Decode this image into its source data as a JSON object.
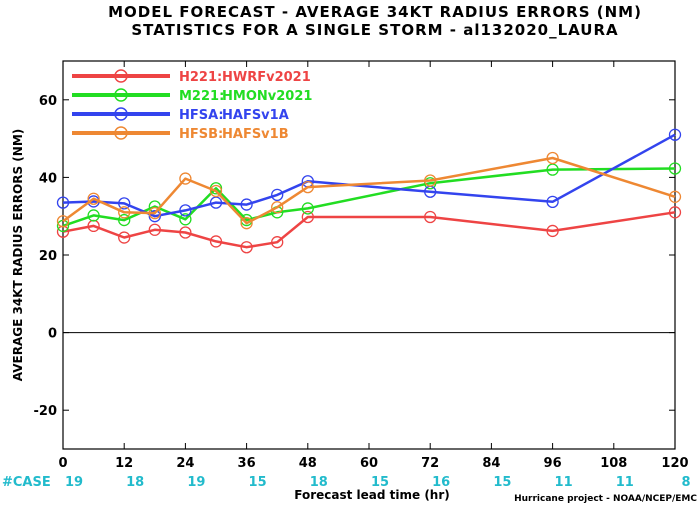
{
  "chart_data": {
    "type": "line",
    "title": "MODEL FORECAST - AVERAGE 34KT RADIUS ERRORS (NM)",
    "subtitle": "STATISTICS FOR A SINGLE STORM - al132020_LAURA",
    "xlabel": "Forecast lead time (hr)",
    "ylabel": "AVERAGE 34KT RADIUS ERRORS (NM)",
    "xlim": [
      0,
      120
    ],
    "ylim": [
      -30,
      70
    ],
    "x_ticks": [
      0,
      12,
      24,
      36,
      48,
      60,
      72,
      84,
      96,
      108,
      120
    ],
    "y_ticks": [
      -20,
      0,
      20,
      40,
      60
    ],
    "grid": false,
    "legend_position": "top-left",
    "case_label": "#CASE",
    "case_x": [
      0,
      12,
      24,
      36,
      48,
      60,
      72,
      84,
      96,
      108,
      120
    ],
    "case_counts": [
      "19",
      "18",
      "19",
      "15",
      "18",
      "15",
      "16",
      "15",
      "11",
      "11",
      "8"
    ],
    "credit": "Hurricane project - NOAA/NCEP/EMC",
    "series": [
      {
        "name": "H221:",
        "desc": "HWRFv2021",
        "color": "#ee4444",
        "x": [
          0,
          6,
          12,
          18,
          24,
          30,
          36,
          42,
          48,
          72,
          96,
          120
        ],
        "y": [
          26,
          27.5,
          24.5,
          26.5,
          25.8,
          23.5,
          22,
          23.3,
          29.8,
          29.8,
          26.2,
          31
        ]
      },
      {
        "name": "M221:",
        "desc": "HMONv2021",
        "color": "#22dd22",
        "x": [
          0,
          6,
          12,
          18,
          24,
          30,
          36,
          42,
          48,
          72,
          96,
          120
        ],
        "y": [
          27.5,
          30.2,
          29,
          32.5,
          29.2,
          37.2,
          29,
          31,
          32,
          38.5,
          42,
          42.3
        ]
      },
      {
        "name": "HFSA:",
        "desc": "HAFSv1A",
        "color": "#3344ee",
        "x": [
          0,
          6,
          12,
          18,
          24,
          30,
          36,
          42,
          48,
          72,
          96,
          120
        ],
        "y": [
          33.5,
          33.8,
          33.3,
          30,
          31.5,
          33.5,
          33,
          35.5,
          39,
          36.3,
          33.7,
          51
        ]
      },
      {
        "name": "HFSB:",
        "desc": "HAFSv1B",
        "color": "#ee8833",
        "x": [
          0,
          6,
          12,
          18,
          24,
          30,
          36,
          42,
          48,
          72,
          96,
          120
        ],
        "y": [
          28.7,
          34.5,
          31,
          30.8,
          39.7,
          36.5,
          28.2,
          32.3,
          37.5,
          39.2,
          45,
          35
        ]
      }
    ]
  }
}
